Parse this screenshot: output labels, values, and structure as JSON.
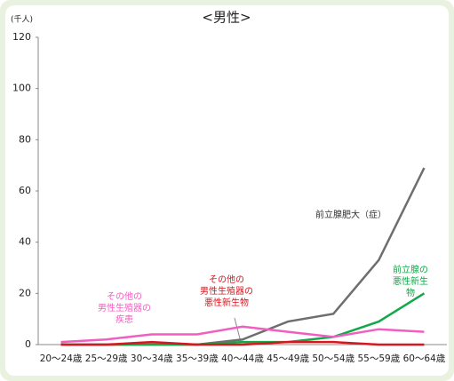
{
  "chart_data": {
    "type": "line",
    "title": "<男性>",
    "y_unit": "(千人)",
    "categories": [
      "20～24歳",
      "25～29歳",
      "30～34歳",
      "35～39歳",
      "40～44歳",
      "45～49歳",
      "50～54歳",
      "55～59歳",
      "60～64歳"
    ],
    "series": [
      {
        "name": "前立腺肥大（症）",
        "color": "#6e6e6e",
        "values": [
          0,
          0,
          0,
          0,
          2,
          9,
          12,
          33,
          69
        ]
      },
      {
        "name": "前立腺の\n悪性新生物",
        "color": "#13a84a",
        "values": [
          0,
          0,
          0,
          0,
          1,
          1,
          3,
          9,
          20
        ]
      },
      {
        "name": "その他の\n男性生殖器の\n悪性新生物",
        "color": "#d7171f",
        "values": [
          0,
          0,
          1,
          0,
          0,
          1,
          1,
          0,
          0
        ]
      },
      {
        "name": "その他の\n男性生殖器の\n疾患",
        "color": "#f05fc0",
        "values": [
          1,
          2,
          4,
          4,
          7,
          5,
          3,
          6,
          5
        ]
      }
    ],
    "ylim": [
      0,
      120
    ],
    "yticks": [
      0,
      20,
      40,
      60,
      80,
      100,
      120
    ],
    "grid": false
  }
}
